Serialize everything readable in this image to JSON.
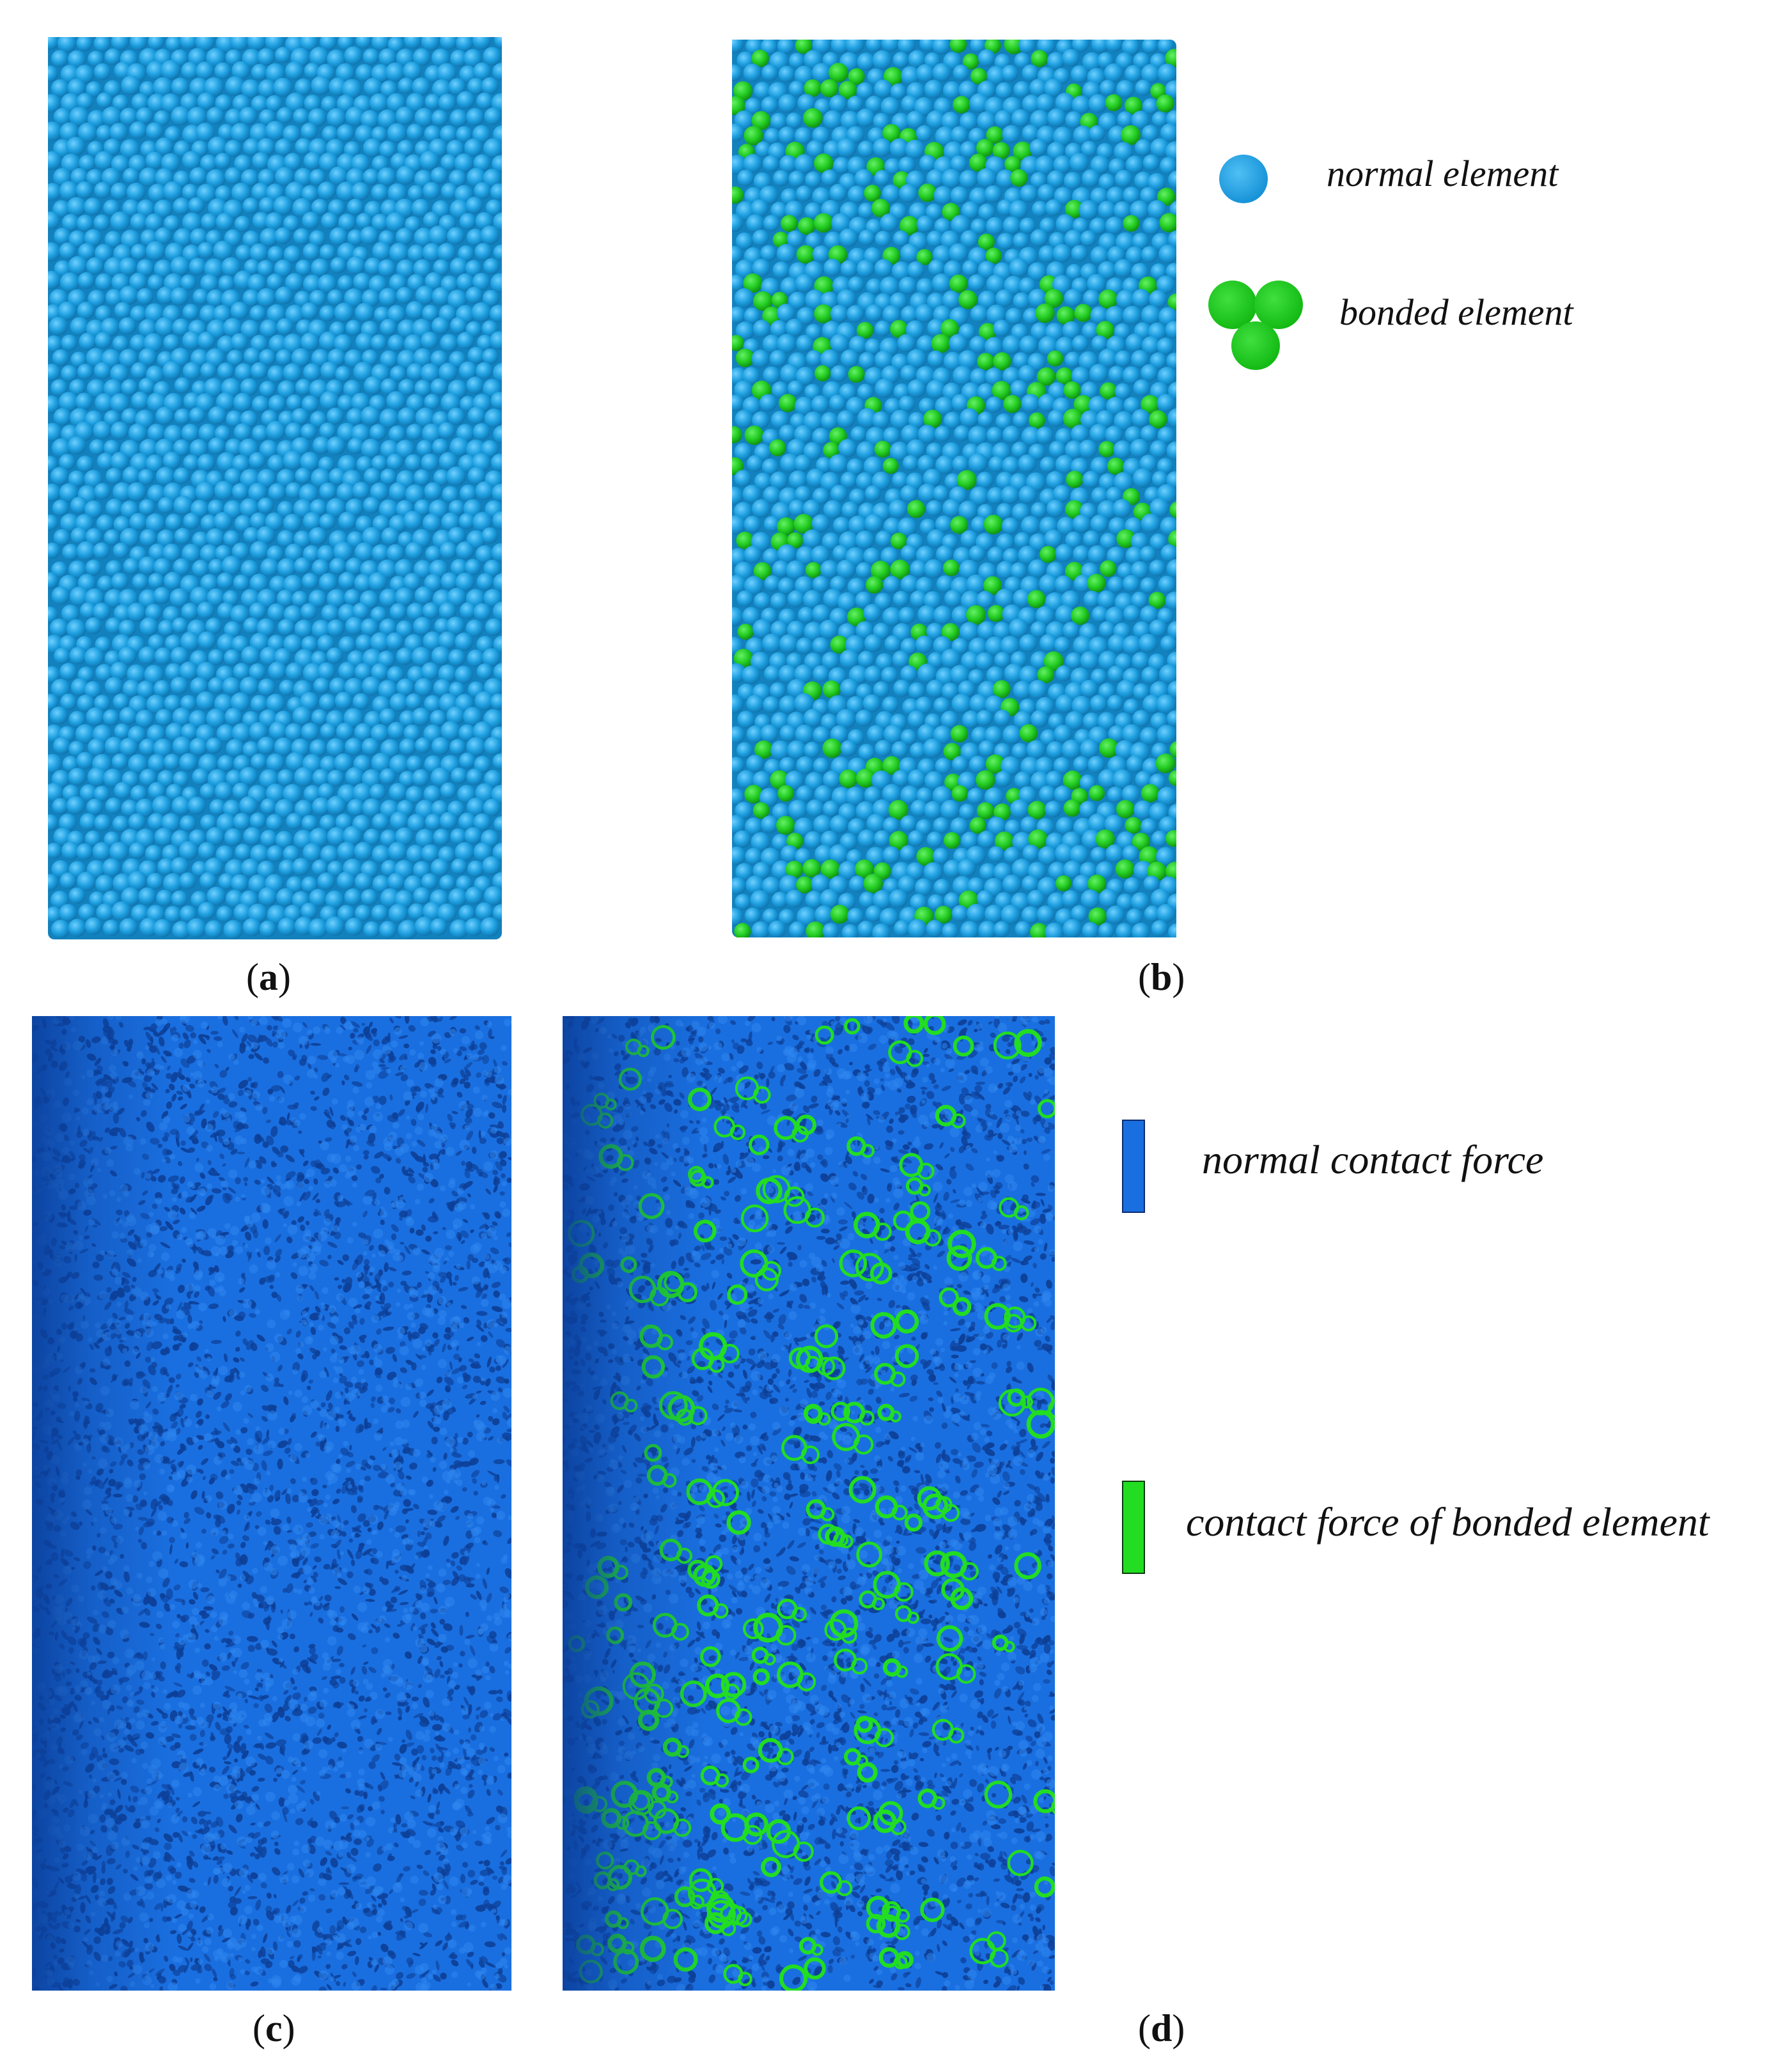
{
  "figure": {
    "panels": [
      {
        "id": "a",
        "label": "a",
        "fill": "particles",
        "bonded": false
      },
      {
        "id": "b",
        "label": "b",
        "fill": "particles",
        "bonded": true
      },
      {
        "id": "c",
        "label": "c",
        "fill": "forces",
        "bonded": false
      },
      {
        "id": "d",
        "label": "d",
        "fill": "forces",
        "bonded": true
      }
    ],
    "legend_top": {
      "normal_label": "normal element",
      "bonded_label": "bonded element"
    },
    "legend_bottom": {
      "normal_label": "normal contact force",
      "bonded_label": "contact force of bonded element"
    },
    "colors": {
      "normal_element": "#1e9fe0",
      "bonded_element": "#22cc22",
      "normal_force": "#1a6fe0",
      "bonded_force": "#22dd22"
    }
  }
}
